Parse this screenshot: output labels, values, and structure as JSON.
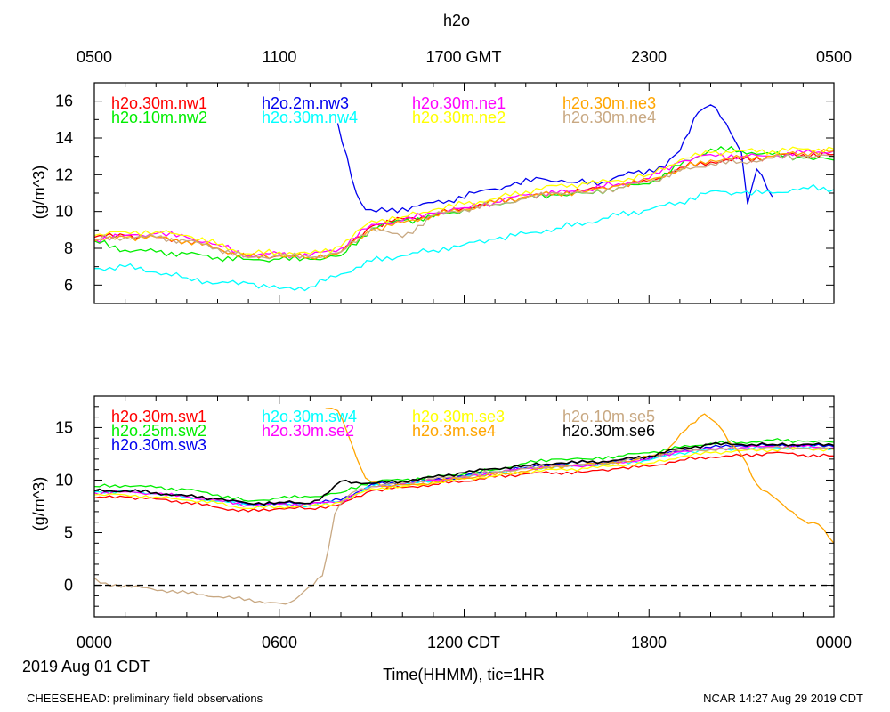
{
  "title": "h2o",
  "top_axis": {
    "ticks": [
      "0500",
      "1100",
      "1700 GMT",
      "2300",
      "0500"
    ]
  },
  "bottom_axis": {
    "ticks": [
      "0000",
      "0600",
      "1200 CDT",
      "1800",
      "0000"
    ],
    "date_label": "2019 Aug 01 CDT",
    "xlabel": "Time(HHMM), tic=1HR"
  },
  "footer": {
    "left": "CHEESEHEAD: preliminary field observations",
    "right": "NCAR 14:27 Aug 29 2019 CDT"
  },
  "colors": {
    "red": "#ff0000",
    "green": "#00ee00",
    "blue": "#0000ee",
    "cyan": "#00ffff",
    "magenta": "#ff00ff",
    "yellow": "#ffff00",
    "orange": "#ffa500",
    "tan": "#c8a882",
    "black": "#000000"
  },
  "chart_data": [
    {
      "type": "line",
      "ylabel": "(g/m^3)",
      "xlim": [
        0,
        24
      ],
      "ylim": [
        5,
        17
      ],
      "yticks": [
        6,
        8,
        10,
        12,
        14,
        16
      ],
      "x_units": "hours since 0000 CDT",
      "series": [
        {
          "name": "h2o.30m.nw1",
          "color": "#ff0000",
          "x": [
            0,
            1,
            2,
            3,
            4,
            5,
            6,
            7,
            8,
            9,
            10,
            11,
            12,
            13,
            14,
            15,
            16,
            17,
            18,
            19,
            20,
            21,
            22,
            23,
            24
          ],
          "values": [
            8.6,
            8.7,
            8.6,
            8.4,
            8.0,
            7.5,
            7.6,
            7.5,
            7.8,
            9.2,
            9.6,
            9.8,
            10.2,
            10.5,
            10.8,
            11.0,
            11.2,
            11.4,
            11.6,
            12.4,
            12.7,
            12.8,
            13.0,
            13.1,
            13.1
          ]
        },
        {
          "name": "h2o.10m.nw2",
          "color": "#00ee00",
          "x": [
            0,
            1,
            2,
            3,
            4,
            5,
            6,
            7,
            8,
            9,
            10,
            11,
            12,
            13,
            14,
            15,
            16,
            17,
            18,
            19,
            20,
            21,
            22,
            23,
            24
          ],
          "values": [
            8.4,
            7.9,
            7.8,
            7.7,
            7.5,
            7.4,
            7.4,
            7.4,
            7.6,
            9.1,
            9.5,
            9.7,
            10.1,
            10.4,
            10.7,
            10.9,
            11.0,
            11.3,
            11.5,
            12.5,
            13.4,
            13.3,
            13.1,
            12.9,
            12.8
          ]
        },
        {
          "name": "h2o.2m.nw3",
          "color": "#0000ee",
          "x": [
            7.9,
            8.2,
            8.5,
            8.8,
            9.5,
            10.5,
            11.5,
            12.5,
            13.5,
            14.5,
            15.5,
            16.5,
            17.5,
            18.5,
            19.0,
            19.6,
            20.0,
            20.5,
            21.0,
            21.2,
            21.5,
            22.0
          ],
          "values": [
            14.8,
            13.0,
            11.0,
            10.1,
            10.0,
            10.3,
            10.6,
            11.1,
            11.4,
            11.8,
            11.6,
            11.6,
            12.1,
            12.4,
            13.3,
            15.4,
            15.8,
            14.8,
            13.2,
            10.4,
            12.3,
            10.8
          ]
        },
        {
          "name": "h2o.30m.nw4",
          "color": "#00ffff",
          "x": [
            0,
            1,
            2,
            3,
            4,
            5,
            6,
            7,
            8,
            9,
            10,
            11,
            12,
            13,
            14,
            15,
            16,
            17,
            18,
            19,
            20,
            21,
            22,
            23,
            24
          ],
          "values": [
            6.9,
            7.0,
            6.7,
            6.4,
            6.1,
            6.1,
            5.8,
            5.9,
            6.6,
            7.3,
            7.6,
            7.9,
            8.2,
            8.5,
            8.8,
            9.1,
            9.4,
            9.8,
            10.1,
            10.5,
            11.1,
            11.0,
            11.0,
            11.3,
            11.2
          ]
        },
        {
          "name": "h2o.30m.ne1",
          "color": "#ff00ff",
          "x": [
            0,
            1,
            2,
            3,
            4,
            5,
            6,
            7,
            8,
            9,
            10,
            11,
            12,
            13,
            14,
            15,
            16,
            17,
            18,
            19,
            20,
            21,
            22,
            23,
            24
          ],
          "values": [
            8.5,
            8.7,
            8.8,
            8.6,
            8.2,
            7.6,
            7.7,
            7.6,
            8.0,
            9.3,
            9.5,
            9.9,
            10.2,
            10.5,
            10.9,
            11.0,
            11.2,
            11.5,
            11.8,
            12.7,
            13.1,
            13.0,
            13.0,
            13.2,
            13.3
          ]
        },
        {
          "name": "h2o.30m.ne2",
          "color": "#ffff00",
          "x": [
            0,
            1,
            2,
            3,
            4,
            5,
            6,
            7,
            8,
            9,
            10,
            11,
            12,
            13,
            14,
            15,
            16,
            17,
            18,
            19,
            20,
            21,
            22,
            23,
            24
          ],
          "values": [
            8.7,
            8.9,
            8.9,
            8.7,
            8.2,
            7.7,
            7.8,
            7.7,
            8.1,
            9.5,
            9.7,
            10.1,
            10.4,
            10.7,
            11.1,
            11.4,
            11.5,
            11.7,
            12.0,
            12.8,
            13.2,
            13.3,
            13.3,
            13.4,
            13.4
          ]
        },
        {
          "name": "h2o.30m.ne3",
          "color": "#ffa500",
          "x": [
            0,
            1,
            2,
            3,
            4,
            5,
            6,
            7,
            8,
            9,
            10,
            11,
            12,
            13,
            14,
            15,
            16,
            17,
            18,
            19,
            20,
            21,
            22,
            23,
            24
          ],
          "values": [
            8.4,
            8.6,
            8.6,
            8.4,
            8.0,
            7.5,
            7.6,
            7.5,
            7.8,
            9.0,
            9.4,
            9.8,
            10.1,
            10.5,
            10.8,
            11.0,
            11.1,
            11.4,
            11.7,
            12.3,
            12.8,
            12.9,
            13.0,
            13.2,
            13.3
          ]
        },
        {
          "name": "h2o.30m.ne4",
          "color": "#c8a882",
          "x": [
            0,
            1,
            2,
            3,
            4,
            5,
            6,
            7,
            8,
            9,
            10,
            11,
            12,
            13,
            14,
            15,
            16,
            17,
            18,
            19,
            20,
            21,
            22,
            23,
            24
          ],
          "values": [
            8.5,
            8.6,
            8.6,
            8.4,
            8.0,
            7.5,
            7.6,
            7.5,
            7.8,
            9.1,
            8.6,
            9.8,
            10.1,
            10.4,
            10.7,
            11.0,
            11.0,
            11.3,
            11.6,
            12.2,
            12.6,
            12.7,
            12.9,
            13.0,
            13.0
          ]
        }
      ]
    },
    {
      "type": "line",
      "ylabel": "(g/m^3)",
      "xlim": [
        0,
        24
      ],
      "ylim": [
        -3,
        18
      ],
      "yticks": [
        0,
        5,
        10,
        15
      ],
      "reference_line": 0,
      "x_units": "hours since 0000 CDT",
      "series": [
        {
          "name": "h2o.30m.sw1",
          "color": "#ff0000",
          "x": [
            0,
            1,
            2,
            3,
            4,
            5,
            6,
            7,
            8,
            9,
            10,
            11,
            12,
            13,
            14,
            15,
            16,
            17,
            18,
            19,
            20,
            21,
            22,
            23,
            24
          ],
          "values": [
            8.3,
            8.4,
            8.2,
            7.9,
            7.4,
            7.0,
            7.3,
            7.3,
            7.7,
            9.0,
            9.3,
            9.6,
            9.9,
            10.3,
            10.6,
            10.7,
            10.8,
            11.1,
            11.3,
            11.9,
            12.2,
            12.3,
            12.6,
            12.4,
            12.3
          ]
        },
        {
          "name": "h2o.25m.sw2",
          "color": "#00ee00",
          "x": [
            0,
            1,
            2,
            3,
            4,
            5,
            6,
            7,
            8,
            9,
            10,
            11,
            12,
            13,
            14,
            15,
            16,
            17,
            18,
            19,
            20,
            21,
            22,
            23,
            24
          ],
          "values": [
            9.4,
            9.5,
            9.3,
            9.1,
            8.6,
            8.0,
            8.3,
            8.4,
            8.8,
            9.9,
            10.0,
            10.3,
            10.6,
            11.0,
            11.6,
            12.0,
            12.0,
            12.3,
            12.6,
            13.1,
            13.5,
            13.6,
            13.8,
            13.7,
            13.6
          ]
        },
        {
          "name": "h2o.30m.sw3",
          "color": "#0000ee",
          "x": [
            0,
            1,
            2,
            3,
            4,
            5,
            6,
            7,
            8,
            9,
            10,
            11,
            12,
            13,
            14,
            15,
            16,
            17,
            18,
            19,
            20,
            21,
            22,
            23,
            24
          ],
          "values": [
            9.0,
            9.0,
            8.8,
            8.5,
            8.2,
            7.7,
            7.8,
            7.8,
            8.1,
            9.6,
            9.7,
            10.0,
            10.4,
            10.8,
            11.2,
            11.5,
            11.7,
            11.8,
            12.1,
            12.8,
            13.1,
            13.3,
            13.3,
            13.3,
            13.2
          ]
        },
        {
          "name": "h2o.30m.sw4",
          "color": "#00ffff",
          "x": [
            0,
            1,
            2,
            3,
            4,
            5,
            6,
            7,
            8,
            9,
            10,
            11,
            12,
            13,
            14,
            15,
            16,
            17,
            18,
            19,
            20,
            21,
            22,
            23,
            24
          ],
          "values": [
            8.9,
            8.9,
            8.7,
            8.4,
            8.0,
            7.6,
            7.7,
            7.6,
            8.0,
            9.4,
            9.6,
            9.9,
            10.3,
            10.7,
            11.1,
            11.3,
            11.4,
            11.6,
            11.9,
            12.6,
            12.9,
            13.0,
            13.1,
            13.1,
            13.0
          ]
        },
        {
          "name": "h2o.30m.se2",
          "color": "#ff00ff",
          "x": [
            0,
            1,
            2,
            3,
            4,
            5,
            6,
            7,
            8,
            9,
            10,
            11,
            12,
            13,
            14,
            15,
            16,
            17,
            18,
            19,
            20,
            21,
            22,
            23,
            24
          ],
          "values": [
            8.8,
            8.9,
            8.7,
            8.4,
            8.1,
            7.6,
            7.7,
            7.7,
            8.0,
            9.4,
            9.6,
            10.0,
            10.3,
            10.7,
            11.1,
            11.3,
            11.4,
            11.7,
            12.0,
            12.7,
            13.0,
            13.1,
            13.2,
            13.2,
            13.1
          ]
        },
        {
          "name": "h2o.30m.se3",
          "color": "#ffff00",
          "x": [
            0,
            1,
            2,
            3,
            4,
            5,
            6,
            7,
            8,
            9,
            10,
            11,
            12,
            13,
            14,
            15,
            16,
            17,
            18,
            19,
            20,
            21,
            22,
            23,
            24
          ],
          "values": [
            8.6,
            8.6,
            8.4,
            8.1,
            7.8,
            7.3,
            7.5,
            7.5,
            7.9,
            9.2,
            9.4,
            9.7,
            10.1,
            10.4,
            10.8,
            11.0,
            11.1,
            11.4,
            11.6,
            12.2,
            12.6,
            12.8,
            12.9,
            13.0,
            12.9
          ]
        },
        {
          "name": "h2o.3m.se4",
          "color": "#ffa500",
          "x": [
            7.5,
            7.9,
            8.2,
            8.5,
            8.8,
            9.5,
            10.5,
            11.5,
            12.5,
            13.5,
            14.5,
            15.5,
            16.5,
            17.5,
            18.5,
            19.2,
            19.8,
            20.2,
            20.6,
            21.0,
            21.5,
            22.0,
            22.5,
            23.0,
            23.5,
            24.0
          ],
          "values": [
            16.8,
            16.6,
            14.6,
            12.2,
            10.2,
            9.4,
            9.6,
            10.0,
            10.4,
            10.7,
            11.1,
            11.4,
            11.6,
            11.9,
            12.6,
            14.8,
            16.3,
            15.4,
            13.6,
            12.4,
            9.6,
            8.5,
            7.2,
            6.2,
            5.8,
            4.0
          ]
        },
        {
          "name": "h2o.10m.se5",
          "color": "#c8a882",
          "x": [
            0,
            0.2,
            6.2,
            6.5,
            6.8,
            7.1,
            7.4,
            7.6,
            7.8,
            7.95,
            8.2,
            8.5,
            9.0,
            10.0,
            11.0,
            12.0,
            13.0,
            14.0,
            15.0,
            16.0,
            17.0,
            18.0,
            19.0,
            20.0,
            21.0,
            22.0,
            23.0,
            24.0
          ],
          "values": [
            0.7,
            0.2,
            -1.8,
            -1.4,
            -0.6,
            0.0,
            0.9,
            3.5,
            6.8,
            7.6,
            8.4,
            9.0,
            9.4,
            9.7,
            10.1,
            10.4,
            10.8,
            11.1,
            11.3,
            11.5,
            11.8,
            12.2,
            12.8,
            12.9,
            13.0,
            13.1,
            13.0,
            13.0
          ]
        },
        {
          "name": "h2o.30m.se6",
          "color": "#000000",
          "x": [
            0,
            1,
            2,
            3,
            4,
            5,
            6,
            7,
            7.6,
            8,
            9,
            10,
            11,
            12,
            13,
            14,
            15,
            16,
            17,
            18,
            19,
            20,
            21,
            22,
            23,
            24
          ],
          "values": [
            9.0,
            9.0,
            8.8,
            8.5,
            8.2,
            7.8,
            7.9,
            7.8,
            8.8,
            9.9,
            9.7,
            9.9,
            10.3,
            10.7,
            11.1,
            11.4,
            11.6,
            11.7,
            11.9,
            12.3,
            13.0,
            13.4,
            13.4,
            13.4,
            13.4,
            13.3
          ]
        }
      ]
    }
  ]
}
